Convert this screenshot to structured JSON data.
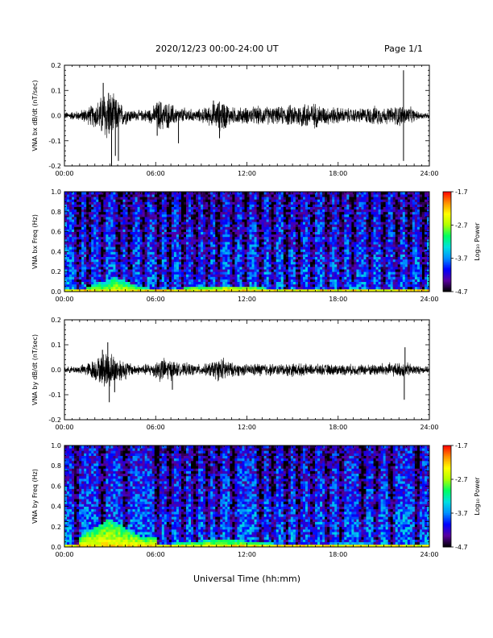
{
  "header": {
    "title": "2020/12/23  00:00-24:00 UT",
    "page": "Page 1/1"
  },
  "footer": {
    "xlabel": "Universal Time (hh:mm)"
  },
  "colors": {
    "trace": "#000000",
    "colormap": [
      "#000000",
      "#5a00a0",
      "#0000ff",
      "#0090ff",
      "#00e0e0",
      "#00ff60",
      "#b0ff00",
      "#ffff00",
      "#ff9000",
      "#ff0000"
    ]
  },
  "chart_data": [
    {
      "id": "bx-wave",
      "type": "line",
      "ylabel": "VNA bx dB/dt (nT/sec)",
      "xlim": [
        "00:00",
        "24:00"
      ],
      "ylim": [
        -0.2,
        0.2
      ],
      "xticks": [
        "00:00",
        "06:00",
        "12:00",
        "18:00",
        "24:00"
      ],
      "yticks": [
        "-0.2",
        "-0.1",
        "0.0",
        "0.1",
        "0.2"
      ],
      "ytick_values": [
        -0.2,
        -0.1,
        0,
        0.1,
        0.2
      ],
      "envelope": {
        "x_hours": [
          0,
          1,
          1.5,
          2,
          2.3,
          2.7,
          3,
          3.3,
          3.8,
          4.5,
          5,
          5.8,
          6.2,
          6.6,
          7,
          7.5,
          8,
          8.5,
          9,
          9.5,
          10,
          10.4,
          11,
          12,
          13,
          14,
          15,
          15.5,
          16,
          16.5,
          17,
          18,
          19,
          20,
          20.5,
          21,
          21.5,
          22,
          22.3,
          22.8,
          23.2,
          24
        ],
        "amp": [
          0.012,
          0.018,
          0.03,
          0.045,
          0.06,
          0.1,
          0.085,
          0.07,
          0.04,
          0.02,
          0.018,
          0.03,
          0.06,
          0.05,
          0.045,
          0.025,
          0.03,
          0.02,
          0.025,
          0.035,
          0.05,
          0.06,
          0.03,
          0.03,
          0.035,
          0.03,
          0.04,
          0.045,
          0.05,
          0.045,
          0.035,
          0.03,
          0.025,
          0.03,
          0.035,
          0.03,
          0.03,
          0.04,
          0.035,
          0.03,
          0.015,
          0.01
        ]
      },
      "spikes": [
        {
          "x": 2.55,
          "y": 0.13
        },
        {
          "x": 2.9,
          "y": 0.09
        },
        {
          "x": 3.1,
          "y": -0.2
        },
        {
          "x": 3.55,
          "y": -0.18
        },
        {
          "x": 3.35,
          "y": -0.16
        },
        {
          "x": 7.5,
          "y": -0.11
        },
        {
          "x": 6.1,
          "y": -0.08
        },
        {
          "x": 9.8,
          "y": 0.06
        },
        {
          "x": 10.2,
          "y": -0.09
        },
        {
          "x": 22.3,
          "y": 0.18
        },
        {
          "x": 22.3,
          "y": -0.18
        }
      ]
    },
    {
      "id": "bx-spec",
      "type": "heatmap",
      "ylabel": "VNA bx Freq (Hz)",
      "xlim": [
        "00:00",
        "24:00"
      ],
      "ylim": [
        0.0,
        1.0
      ],
      "xticks": [
        "00:00",
        "06:00",
        "12:00",
        "18:00",
        "24:00"
      ],
      "yticks": [
        "0.0",
        "0.2",
        "0.4",
        "0.6",
        "0.8",
        "1.0"
      ],
      "ytick_values": [
        0,
        0.2,
        0.4,
        0.6,
        0.8,
        1.0
      ],
      "colorbar": {
        "label": "Log₁₀ Power",
        "min": -4.7,
        "max": -1.7,
        "ticks": [
          "-1.7",
          "-2.7",
          "-3.7",
          "-4.7"
        ],
        "tick_values": [
          -1.7,
          -2.7,
          -3.7,
          -4.7
        ]
      },
      "dark_stripes_hours": [
        0.9,
        1.6,
        2.5,
        3.6,
        4.3,
        5.2,
        6.2,
        6.9,
        7.8,
        8.6,
        9.4,
        10.1,
        11.1,
        11.9,
        12.9,
        13.7,
        14.6,
        15.4,
        16.3,
        17.3,
        18.2,
        19.0,
        20.1,
        21.0,
        21.9,
        22.7,
        23.6
      ],
      "low_freq_enhancement": [
        {
          "start": 1.5,
          "end": 5.5,
          "peak": 3.3,
          "freq_top": 0.15,
          "level": -2.5
        },
        {
          "start": 5.5,
          "end": 16.5,
          "peak": 10.5,
          "freq_top": 0.06,
          "level": -2.2
        },
        {
          "start": 16.5,
          "end": 24,
          "peak": 19,
          "freq_top": 0.04,
          "level": -2.6
        }
      ]
    },
    {
      "id": "by-wave",
      "type": "line",
      "ylabel": "VNA by dB/dt (nT/sec)",
      "xlim": [
        "00:00",
        "24:00"
      ],
      "ylim": [
        -0.2,
        0.2
      ],
      "xticks": [
        "00:00",
        "06:00",
        "12:00",
        "18:00",
        "24:00"
      ],
      "yticks": [
        "-0.2",
        "-0.1",
        "0.0",
        "0.1",
        "0.2"
      ],
      "ytick_values": [
        -0.2,
        -0.1,
        0,
        0.1,
        0.2
      ],
      "envelope": {
        "x_hours": [
          0,
          1,
          1.5,
          2,
          2.4,
          2.8,
          3,
          3.4,
          4,
          4.5,
          5,
          5.8,
          6.3,
          6.8,
          7.2,
          7.6,
          8,
          8.6,
          9.2,
          9.7,
          10.1,
          10.5,
          11,
          12,
          13,
          14,
          15,
          16,
          17,
          18,
          19,
          20,
          21,
          22,
          22.4,
          23,
          24
        ],
        "amp": [
          0.01,
          0.015,
          0.025,
          0.04,
          0.05,
          0.075,
          0.065,
          0.05,
          0.035,
          0.02,
          0.018,
          0.025,
          0.045,
          0.04,
          0.035,
          0.02,
          0.025,
          0.02,
          0.02,
          0.03,
          0.04,
          0.045,
          0.025,
          0.02,
          0.025,
          0.02,
          0.025,
          0.02,
          0.02,
          0.02,
          0.02,
          0.02,
          0.025,
          0.025,
          0.03,
          0.018,
          0.01
        ]
      },
      "spikes": [
        {
          "x": 2.5,
          "y": 0.08
        },
        {
          "x": 2.85,
          "y": 0.11
        },
        {
          "x": 2.95,
          "y": -0.13
        },
        {
          "x": 3.3,
          "y": -0.09
        },
        {
          "x": 7.1,
          "y": -0.08
        },
        {
          "x": 22.4,
          "y": 0.09
        },
        {
          "x": 22.35,
          "y": -0.12
        }
      ]
    },
    {
      "id": "by-spec",
      "type": "heatmap",
      "ylabel": "VNA by Freq (Hz)",
      "xlim": [
        "00:00",
        "24:00"
      ],
      "ylim": [
        0.0,
        1.0
      ],
      "xticks": [
        "00:00",
        "06:00",
        "12:00",
        "18:00",
        "24:00"
      ],
      "yticks": [
        "0.0",
        "0.2",
        "0.4",
        "0.6",
        "0.8",
        "1.0"
      ],
      "ytick_values": [
        0,
        0.2,
        0.4,
        0.6,
        0.8,
        1.0
      ],
      "colorbar": {
        "label": "Log₁₀ Power",
        "min": -4.7,
        "max": -1.7,
        "ticks": [
          "-1.7",
          "-2.7",
          "-3.7",
          "-4.7"
        ],
        "tick_values": [
          -1.7,
          -2.7,
          -3.7,
          -4.7
        ]
      },
      "dark_stripes_hours": [
        0.8,
        2.5,
        4.0,
        6.1,
        6.9,
        7.8,
        8.6,
        9.4,
        10.1,
        11.1,
        12.9,
        13.7,
        14.6,
        15.4,
        16.3,
        17.3,
        18.2,
        19.6,
        20.5,
        21.5,
        23.2
      ],
      "low_freq_enhancement": [
        {
          "start": 1.0,
          "end": 6.0,
          "peak": 3.0,
          "freq_top": 0.28,
          "level": -2.3
        },
        {
          "start": 6.0,
          "end": 15.5,
          "peak": 10.5,
          "freq_top": 0.08,
          "level": -2.4
        },
        {
          "start": 15.5,
          "end": 24,
          "peak": 19,
          "freq_top": 0.05,
          "level": -2.9
        }
      ]
    }
  ]
}
